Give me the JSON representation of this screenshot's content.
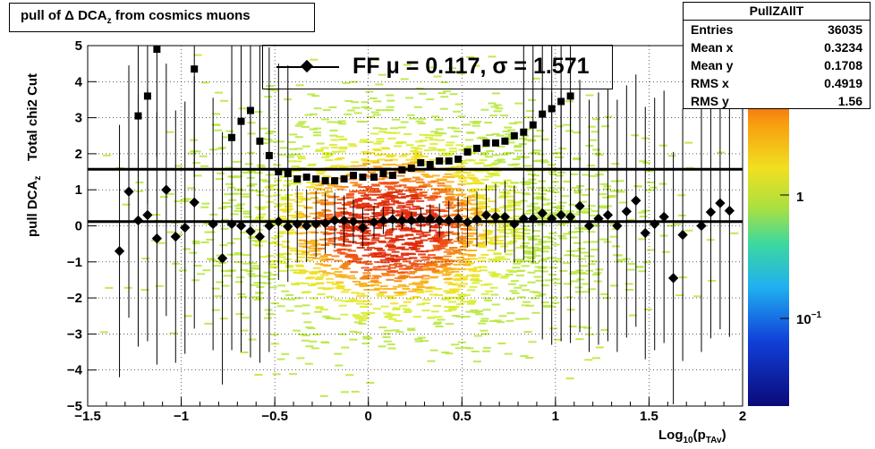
{
  "window": {
    "title": "pull of Δ DCA_z from cosmics muons"
  },
  "title": {
    "main": "pull of Δ DCA",
    "sub": "z",
    "rest": " from cosmics muons"
  },
  "stats": {
    "name": "PullZAllT",
    "rows": [
      {
        "label": "Entries",
        "value": "36035"
      },
      {
        "label": "Mean x",
        "value": "0.3234"
      },
      {
        "label": "Mean y",
        "value": "0.1708"
      },
      {
        "label": "RMS x",
        "value": "0.4919"
      },
      {
        "label": "RMS y",
        "value": "1.56"
      }
    ]
  },
  "legend": {
    "text": "FF μ =  0.117, σ =   1.571"
  },
  "colors": {
    "fit_line": "#000000",
    "marker": "#000000",
    "grid": "#000000"
  },
  "chart_data": {
    "type": "scatter",
    "title": "pull of Δ DCA_z from cosmics muons",
    "xlabel": "Log10(pTAv)",
    "ylabel": "pull DCA_z    Total chi2 Cut",
    "xlim": [
      -1.5,
      2
    ],
    "ylim": [
      -5,
      5
    ],
    "xticks": [
      "−1.5",
      "−1",
      "−0.5",
      "0",
      "0.5",
      "1",
      "1.5",
      "2"
    ],
    "yticks": [
      "−5",
      "−4",
      "−3",
      "−2",
      "−1",
      "0",
      "1",
      "2",
      "3",
      "4",
      "5"
    ],
    "grid": true,
    "colorbar": {
      "ticks": [
        "1",
        "10^-1"
      ],
      "scale": "log"
    },
    "horizontal_lines": [
      0.117,
      1.571
    ],
    "series": [
      {
        "name": "mean",
        "x": [
          -1.33,
          -1.28,
          -1.23,
          -1.18,
          -1.13,
          -1.08,
          -1.03,
          -0.98,
          -0.93,
          -0.83,
          -0.78,
          -0.73,
          -0.68,
          -0.63,
          -0.58,
          -0.53,
          -0.48,
          -0.43,
          -0.38,
          -0.33,
          -0.28,
          -0.23,
          -0.18,
          -0.13,
          -0.08,
          -0.03,
          0.03,
          0.08,
          0.13,
          0.18,
          0.23,
          0.28,
          0.33,
          0.38,
          0.43,
          0.48,
          0.53,
          0.58,
          0.63,
          0.68,
          0.73,
          0.78,
          0.83,
          0.88,
          0.93,
          0.98,
          1.03,
          1.08,
          1.13,
          1.18,
          1.23,
          1.28,
          1.33,
          1.38,
          1.43,
          1.48,
          1.53,
          1.58,
          1.63,
          1.68,
          1.78,
          1.83,
          1.88,
          1.93
        ],
        "y": [
          -0.7,
          0.95,
          0.15,
          0.3,
          -0.35,
          1.0,
          -0.3,
          -0.05,
          0.65,
          0.05,
          -0.9,
          0.05,
          0.0,
          -0.15,
          -0.3,
          0.0,
          0.12,
          -0.02,
          0.05,
          0.0,
          0.05,
          0.07,
          0.15,
          0.15,
          0.12,
          -0.05,
          0.1,
          0.15,
          0.18,
          0.15,
          0.15,
          0.2,
          0.2,
          0.15,
          0.15,
          0.2,
          0.1,
          0.18,
          0.3,
          0.25,
          0.25,
          0.05,
          0.2,
          0.2,
          0.35,
          0.2,
          0.3,
          0.25,
          0.55,
          0.0,
          0.2,
          0.3,
          0.0,
          0.4,
          0.7,
          -0.2,
          0.05,
          0.25,
          -1.45,
          -0.25,
          0.0,
          0.38,
          0.63,
          0.42
        ]
      },
      {
        "name": "sigma",
        "x": [
          -1.28,
          -1.23,
          -1.18,
          -1.13,
          -0.93,
          -0.73,
          -0.68,
          -0.63,
          -0.58,
          -0.53,
          -0.48,
          -0.43,
          -0.38,
          -0.33,
          -0.28,
          -0.23,
          -0.18,
          -0.13,
          -0.08,
          -0.03,
          0.03,
          0.08,
          0.13,
          0.18,
          0.23,
          0.28,
          0.33,
          0.38,
          0.43,
          0.48,
          0.53,
          0.58,
          0.63,
          0.68,
          0.73,
          0.78,
          0.83,
          0.88,
          0.93,
          0.98,
          1.03,
          1.08
        ],
        "y": [
          null,
          3.05,
          3.6,
          4.9,
          4.35,
          2.45,
          2.9,
          3.2,
          2.35,
          1.95,
          1.5,
          1.45,
          1.3,
          1.35,
          1.3,
          1.25,
          1.25,
          1.3,
          1.4,
          1.35,
          1.35,
          1.45,
          1.4,
          1.55,
          1.6,
          1.75,
          1.7,
          1.8,
          1.8,
          1.85,
          2.05,
          2.15,
          2.3,
          2.3,
          2.35,
          2.5,
          2.6,
          2.8,
          3.1,
          3.25,
          3.45,
          3.6
        ]
      }
    ]
  }
}
